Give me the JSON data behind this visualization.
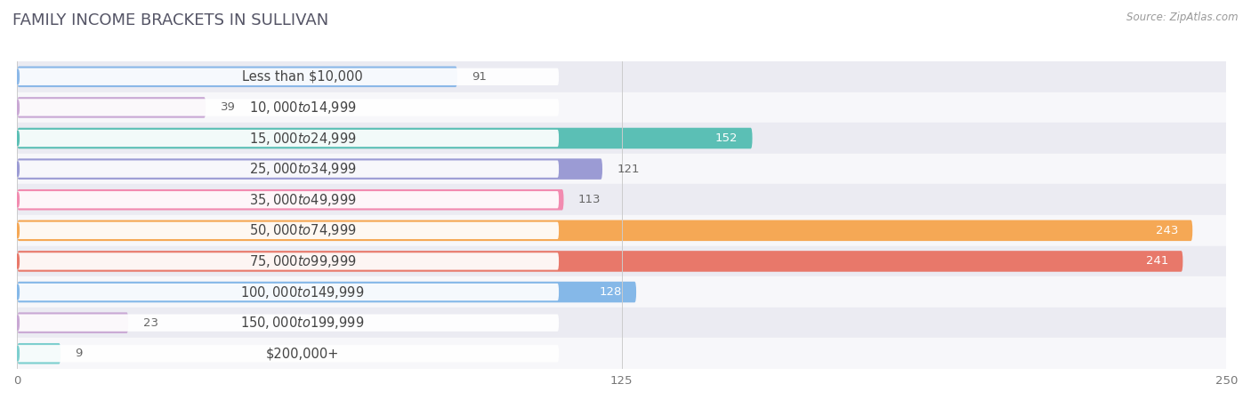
{
  "title": "FAMILY INCOME BRACKETS IN SULLIVAN",
  "source": "Source: ZipAtlas.com",
  "categories": [
    "Less than $10,000",
    "$10,000 to $14,999",
    "$15,000 to $24,999",
    "$25,000 to $34,999",
    "$35,000 to $49,999",
    "$50,000 to $74,999",
    "$75,000 to $99,999",
    "$100,000 to $149,999",
    "$150,000 to $199,999",
    "$200,000+"
  ],
  "values": [
    91,
    39,
    152,
    121,
    113,
    243,
    241,
    128,
    23,
    9
  ],
  "bar_colors": [
    "#8BB8E8",
    "#C9A8D4",
    "#5BBFB5",
    "#9B9BD4",
    "#F28BB0",
    "#F5A855",
    "#E8786A",
    "#85B8E8",
    "#C9A8D4",
    "#7DCFCF"
  ],
  "bg_row_colors": [
    "#EBEBF2",
    "#F7F7FA"
  ],
  "xlim": [
    0,
    250
  ],
  "xticks": [
    0,
    125,
    250
  ],
  "background_color": "#FFFFFF",
  "title_fontsize": 13,
  "label_fontsize": 10.5,
  "value_fontsize": 9.5,
  "title_color": "#555566",
  "label_color": "#444444",
  "value_color_inside": "#FFFFFF",
  "value_color_outside": "#666666"
}
